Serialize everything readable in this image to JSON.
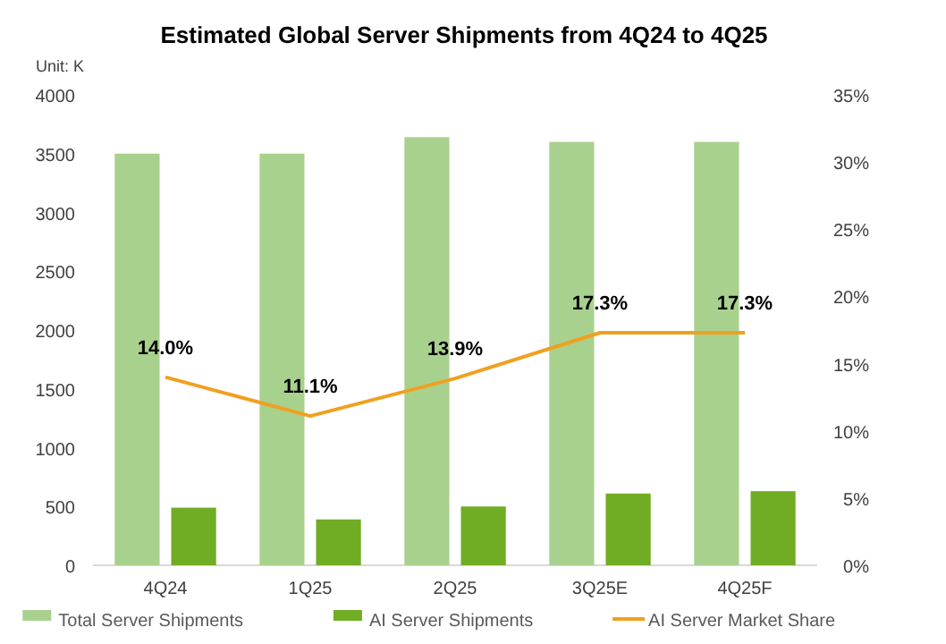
{
  "chart_data": {
    "type": "bar",
    "title": "Estimated Global Server Shipments from 4Q24 to 4Q25",
    "annotations": [
      "Unit: K"
    ],
    "categories": [
      "4Q24",
      "1Q25",
      "2Q25",
      "3Q25E",
      "4Q25F"
    ],
    "series": [
      {
        "name": "Total Server Shipments",
        "color": "#a9d18e",
        "values": [
          3500,
          3500,
          3640,
          3600,
          3600
        ]
      },
      {
        "name": "AI Server Shipments",
        "color": "#70ad24",
        "values": [
          490,
          390,
          500,
          610,
          630
        ]
      },
      {
        "name": "AI Server Market Share",
        "type": "line",
        "axis": "y2",
        "color": "#f0a020",
        "values": [
          14.0,
          11.1,
          13.9,
          17.3,
          17.3
        ],
        "value_labels": [
          "14.0%",
          "11.1%",
          "13.9%",
          "17.3%",
          "17.3%"
        ]
      }
    ],
    "ylim": [
      0,
      4000
    ],
    "yticks": [
      0,
      500,
      1000,
      1500,
      2000,
      2500,
      3000,
      3500,
      4000
    ],
    "y2lim": [
      0,
      35
    ],
    "y2ticks": [
      {
        "value": 0,
        "label": "0%"
      },
      {
        "value": 5,
        "label": "5%"
      },
      {
        "value": 10,
        "label": "10%"
      },
      {
        "value": 15,
        "label": "15%"
      },
      {
        "value": 20,
        "label": "20%"
      },
      {
        "value": 25,
        "label": "25%"
      },
      {
        "value": 30,
        "label": "30%"
      },
      {
        "value": 35,
        "label": "35%"
      }
    ],
    "grid": false,
    "legend": "bottom"
  }
}
